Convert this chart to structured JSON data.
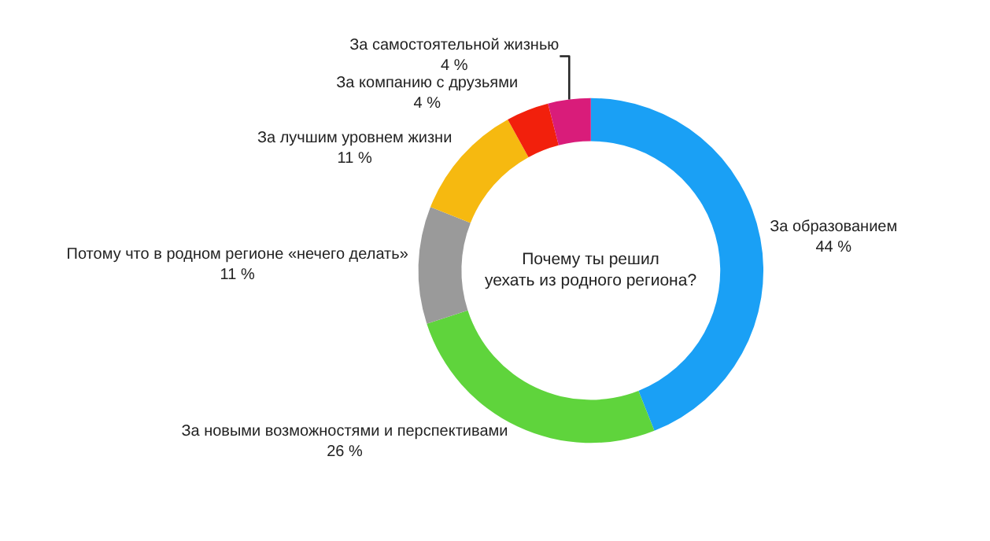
{
  "chart_data": {
    "type": "donut",
    "title": "Почему ты решил уехать из родного региона?",
    "categories": [
      "За образованием",
      "За новыми возможностями и перспективами",
      "Потому что в родном регионе «нечего делать»",
      "За лучшим уровнем жизни",
      "За компанию с друзьями",
      "За самостоятельной жизнью"
    ],
    "values": [
      44,
      26,
      11,
      11,
      4,
      4
    ],
    "value_labels": [
      "44 %",
      "26 %",
      "11 %",
      "11 %",
      "4 %",
      "4 %"
    ],
    "colors": [
      "#1aa0f5",
      "#5fd43c",
      "#9a9a9a",
      "#f6b910",
      "#f2200c",
      "#d91c7a"
    ],
    "legend": false
  }
}
